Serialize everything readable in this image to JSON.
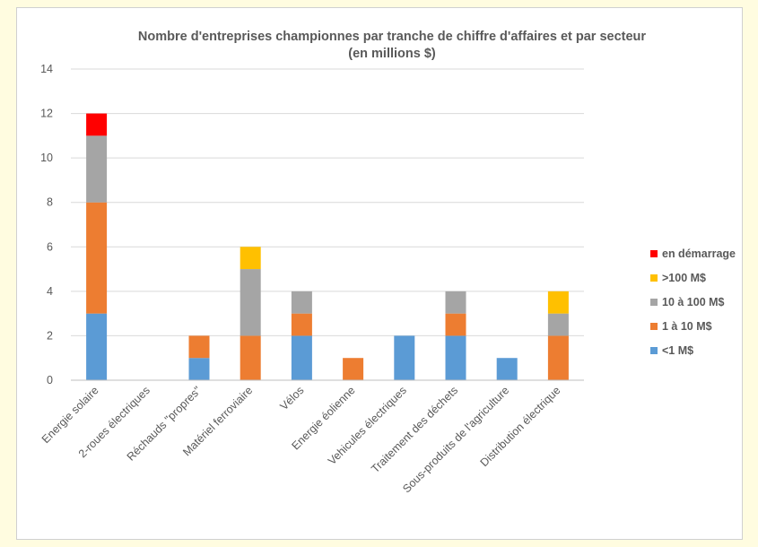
{
  "chart_data": {
    "type": "bar",
    "stacked": true,
    "title_lines": [
      "Nombre d'entreprises championnes par tranche de chiffre d'affaires et par secteur",
      "(en millions $)"
    ],
    "categories": [
      "Energie solaire",
      "2-roues électriques",
      "Réchauds \"propres\"",
      "Matériel ferroviaire",
      "Vélos",
      "Energie éolienne",
      "Vehicules électriques",
      "Traitement des déchets",
      "Sous-produits de l'agriculture",
      "Distribution électrique"
    ],
    "series": [
      {
        "name": "<1 M$",
        "color": "#5b9bd5",
        "values": [
          3,
          0,
          1,
          0,
          2,
          0,
          2,
          2,
          1,
          0
        ]
      },
      {
        "name": "1 à 10 M$",
        "color": "#ed7d31",
        "values": [
          5,
          0,
          1,
          2,
          1,
          1,
          0,
          1,
          0,
          2
        ]
      },
      {
        "name": "10 à 100 M$",
        "color": "#a5a5a5",
        "values": [
          3,
          0,
          0,
          3,
          1,
          0,
          0,
          1,
          0,
          1
        ]
      },
      {
        "name": ">100 M$",
        "color": "#ffc000",
        "values": [
          0,
          0,
          0,
          1,
          0,
          0,
          0,
          0,
          0,
          1
        ]
      },
      {
        "name": "en démarrage",
        "color": "#ff0000",
        "values": [
          1,
          0,
          0,
          0,
          0,
          0,
          0,
          0,
          0,
          0
        ]
      }
    ],
    "legend_order": [
      "en démarrage",
      ">100 M$",
      "10 à 100 M$",
      "1 à 10 M$",
      "<1 M$"
    ],
    "legend_position": "right",
    "ylim": [
      0,
      14
    ],
    "yticks": [
      0,
      2,
      4,
      6,
      8,
      10,
      12,
      14
    ],
    "grid": true,
    "xlabel": "",
    "ylabel": ""
  }
}
